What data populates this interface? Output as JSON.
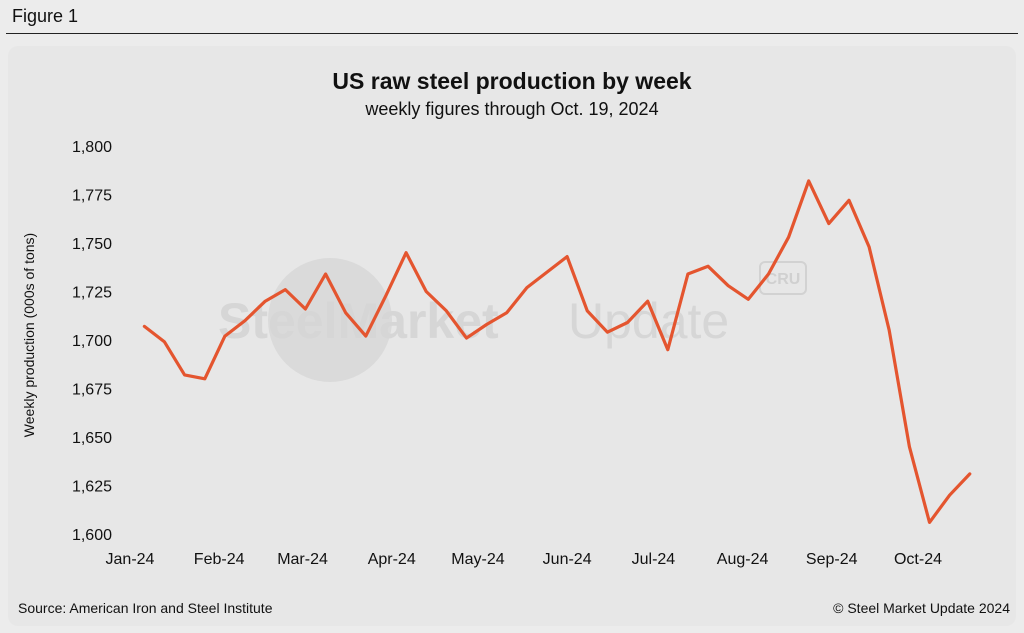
{
  "figure_label": "Figure 1",
  "footer": {
    "source": "Source: American Iron and Steel Institute",
    "copyright": "© Steel Market Update 2024"
  },
  "watermark": {
    "text_bold": "SteelMarket",
    "text_light": "Update",
    "badge": "CRU"
  },
  "colors": {
    "line": "#e4552f",
    "background": "#e7e7e7",
    "text": "#111111"
  },
  "chart_data": {
    "type": "line",
    "title": "US raw steel production by week",
    "subtitle": "weekly figures through Oct. 19, 2024",
    "xlabel": "",
    "ylabel": "Weekly production (000s of tons)",
    "ylim": [
      1600,
      1800
    ],
    "y_ticks": [
      1600,
      1625,
      1650,
      1675,
      1700,
      1725,
      1750,
      1775,
      1800
    ],
    "y_tick_labels": [
      "1,600",
      "1,625",
      "1,650",
      "1,675",
      "1,700",
      "1,725",
      "1,750",
      "1,775",
      "1,800"
    ],
    "x_tick_labels": [
      "Jan-24",
      "Feb-24",
      "Mar-24",
      "Apr-24",
      "May-24",
      "Jun-24",
      "Jul-24",
      "Aug-24",
      "Sep-24",
      "Oct-24"
    ],
    "grid": false,
    "legend": "none",
    "x": [
      "2024-01-06",
      "2024-01-13",
      "2024-01-20",
      "2024-01-27",
      "2024-02-03",
      "2024-02-10",
      "2024-02-17",
      "2024-02-24",
      "2024-03-02",
      "2024-03-09",
      "2024-03-16",
      "2024-03-23",
      "2024-03-30",
      "2024-04-06",
      "2024-04-13",
      "2024-04-20",
      "2024-04-27",
      "2024-05-04",
      "2024-05-11",
      "2024-05-18",
      "2024-05-25",
      "2024-06-01",
      "2024-06-08",
      "2024-06-15",
      "2024-06-22",
      "2024-06-29",
      "2024-07-06",
      "2024-07-13",
      "2024-07-20",
      "2024-07-27",
      "2024-08-03",
      "2024-08-10",
      "2024-08-17",
      "2024-08-24",
      "2024-08-31",
      "2024-09-07",
      "2024-09-14",
      "2024-09-21",
      "2024-09-28",
      "2024-10-05",
      "2024-10-12",
      "2024-10-19"
    ],
    "series": [
      {
        "values": [
          1707,
          1699,
          1682,
          1680,
          1702,
          1710,
          1720,
          1726,
          1716,
          1734,
          1714,
          1702,
          1723,
          1745,
          1725,
          1715,
          1701,
          1708,
          1714,
          1727,
          1735,
          1743,
          1715,
          1704,
          1709,
          1720,
          1695,
          1734,
          1738,
          1728,
          1721,
          1734,
          1753,
          1782,
          1760,
          1772,
          1748,
          1705,
          1645,
          1606,
          1620,
          1631
        ]
      }
    ]
  }
}
